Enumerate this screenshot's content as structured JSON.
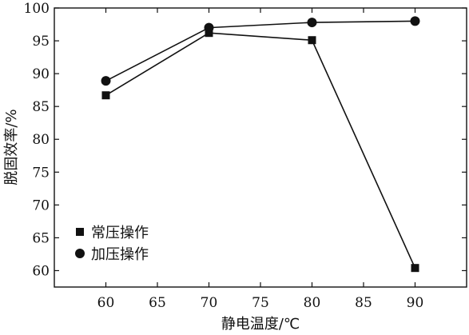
{
  "chart_data": {
    "type": "line",
    "title": "",
    "xlabel": "静电温度/℃",
    "ylabel": "脱固效率/%",
    "xlim": [
      55,
      95
    ],
    "ylim": [
      57.5,
      100
    ],
    "xticks": [
      60,
      65,
      70,
      75,
      80,
      85,
      90
    ],
    "yticks": [
      60,
      65,
      70,
      75,
      80,
      85,
      90,
      95,
      100
    ],
    "x": [
      60,
      70,
      80,
      90
    ],
    "grid": false,
    "legend_position": "bottom-left",
    "series": [
      {
        "name": "常压操作",
        "marker": "square",
        "values": [
          86.7,
          96.2,
          95.1,
          60.4
        ]
      },
      {
        "name": "加压操作",
        "marker": "circle",
        "values": [
          88.9,
          97.0,
          97.8,
          98.0
        ]
      }
    ]
  }
}
